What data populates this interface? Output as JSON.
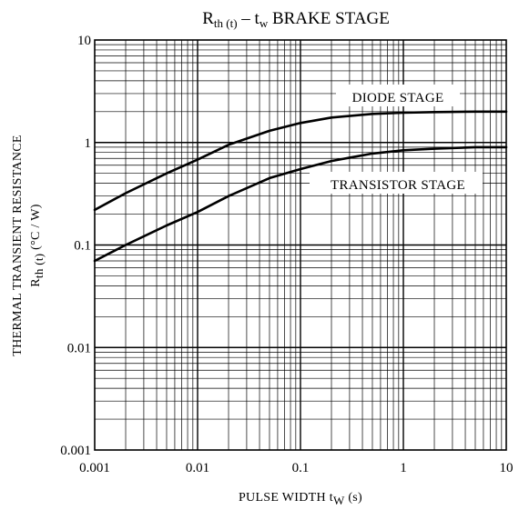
{
  "chart_data": {
    "type": "line",
    "title": {
      "r_main": "R",
      "r_sub": "th (t)",
      "dash": "–",
      "t_main": "t",
      "t_sub": "w",
      "rest": " BRAKE STAGE"
    },
    "xlabel": {
      "text": "PULSE WIDTH",
      "t_main": "t",
      "t_sub": "W",
      "unit": "(s)"
    },
    "ylabel": {
      "line1": "THERMAL TRANSIENT RESISTANCE",
      "r_main": "R",
      "r_sub": "th (t)",
      "unit": "(°C / W)"
    },
    "x_scale": "log",
    "y_scale": "log",
    "xlim": [
      0.001,
      10
    ],
    "ylim": [
      0.001,
      10
    ],
    "x_ticks": [
      "0.001",
      "0.01",
      "0.1",
      "1",
      "10"
    ],
    "y_ticks": [
      "0.001",
      "0.01",
      "0.1",
      "1",
      "10"
    ],
    "grid": true,
    "series": [
      {
        "name": "DIODE STAGE",
        "x": [
          0.001,
          0.002,
          0.005,
          0.01,
          0.02,
          0.05,
          0.1,
          0.2,
          0.5,
          1,
          2,
          5,
          10
        ],
        "y": [
          0.22,
          0.32,
          0.5,
          0.68,
          0.95,
          1.3,
          1.55,
          1.75,
          1.9,
          1.95,
          1.98,
          2.0,
          2.0
        ]
      },
      {
        "name": "TRANSISTOR STAGE",
        "x": [
          0.001,
          0.002,
          0.005,
          0.01,
          0.02,
          0.05,
          0.1,
          0.2,
          0.5,
          1,
          2,
          5,
          10
        ],
        "y": [
          0.07,
          0.1,
          0.155,
          0.21,
          0.3,
          0.45,
          0.55,
          0.66,
          0.78,
          0.84,
          0.87,
          0.9,
          0.9
        ]
      }
    ]
  }
}
